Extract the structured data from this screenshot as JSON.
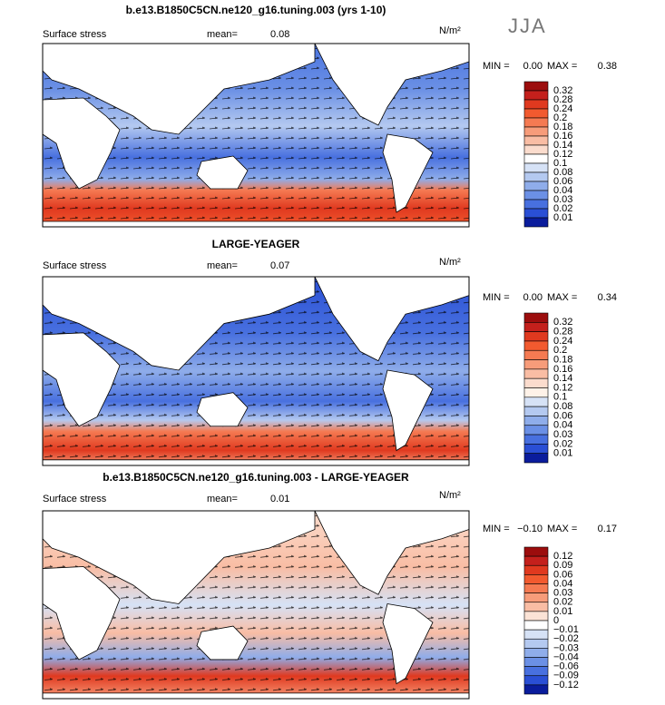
{
  "season": "JJA",
  "panels": [
    {
      "title": "b.e13.B1850C5CN.ne120_g16.tuning.003 (yrs 1-10)",
      "field": "Surface stress",
      "mean_label": "mean=",
      "mean": "0.08",
      "units": "N/m²",
      "min_label": "MIN =",
      "min": "0.00",
      "max_label": "MAX =",
      "max": "0.38",
      "colorbar": {
        "labels": [
          "0.32",
          "0.28",
          "0.24",
          "0.2",
          "0.18",
          "0.16",
          "0.14",
          "0.12",
          "0.1",
          "0.08",
          "0.06",
          "0.04",
          "0.03",
          "0.02",
          "0.01"
        ],
        "colors": [
          "#9c0d0d",
          "#c4201c",
          "#e0391f",
          "#f25a2f",
          "#f57a52",
          "#f79c7a",
          "#f9bda4",
          "#fbdccd",
          "#ffffff",
          "#d6e2f6",
          "#b4c9f0",
          "#8fadea",
          "#6b90e5",
          "#4870df",
          "#2a4fd5",
          "#0a1c9c"
        ]
      }
    },
    {
      "title": "LARGE-YEAGER",
      "field": "Surface stress",
      "mean_label": "mean=",
      "mean": "0.07",
      "units": "N/m²",
      "min_label": "MIN =",
      "min": "0.00",
      "max_label": "MAX =",
      "max": "0.34",
      "colorbar": {
        "labels": [
          "0.32",
          "0.28",
          "0.24",
          "0.2",
          "0.18",
          "0.16",
          "0.14",
          "0.12",
          "0.1",
          "0.08",
          "0.06",
          "0.04",
          "0.03",
          "0.02",
          "0.01"
        ],
        "colors": [
          "#9c0d0d",
          "#c4201c",
          "#e0391f",
          "#f25a2f",
          "#f57a52",
          "#f79c7a",
          "#f9bda4",
          "#fbdccd",
          "#fff2e8",
          "#d6e2f6",
          "#b4c9f0",
          "#8fadea",
          "#6b90e5",
          "#4870df",
          "#2a4fd5",
          "#0a1c9c"
        ]
      }
    },
    {
      "title": "b.e13.B1850C5CN.ne120_g16.tuning.003 - LARGE-YEAGER",
      "field": "Surface stress",
      "mean_label": "mean=",
      "mean": "0.01",
      "units": "N/m²",
      "min_label": "MIN =",
      "min": "−0.10",
      "max_label": "MAX =",
      "max": "0.17",
      "colorbar": {
        "labels": [
          "0.12",
          "0.09",
          "0.06",
          "0.04",
          "0.03",
          "0.02",
          "0.01",
          "0",
          "−0.01",
          "−0.02",
          "−0.03",
          "−0.04",
          "−0.06",
          "−0.09",
          "−0.12"
        ],
        "colors": [
          "#9c0d0d",
          "#c4201c",
          "#e0391f",
          "#f25a2f",
          "#f57a52",
          "#f79c7a",
          "#f9bda4",
          "#fbe3d6",
          "#ffffff",
          "#d6e2f6",
          "#b4c9f0",
          "#8fadea",
          "#6b90e5",
          "#4870df",
          "#2a4fd5",
          "#0a1c9c"
        ]
      }
    }
  ]
}
